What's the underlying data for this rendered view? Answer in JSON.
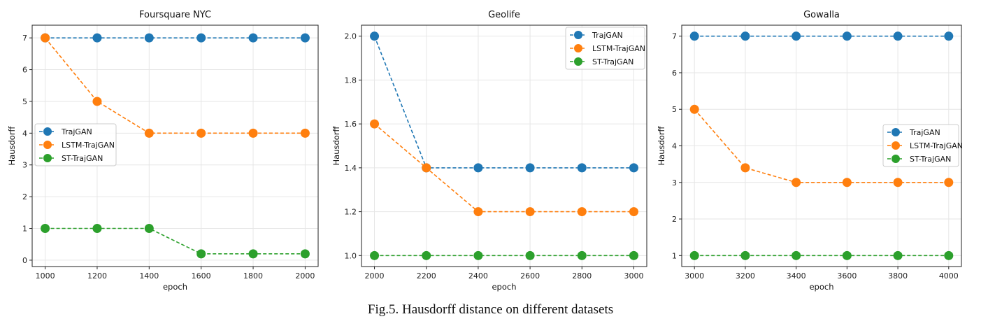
{
  "caption": "Fig.5. Hausdorff distance on different datasets",
  "colors": {
    "TrajGAN": "#1f77b4",
    "LSTM-TrajGAN": "#ff7f0e",
    "ST-TrajGAN": "#2ca02c"
  },
  "chart_data": [
    {
      "type": "line",
      "title": "Foursquare NYC",
      "xlabel": "epoch",
      "ylabel": "Hausdorff",
      "x": [
        1000,
        1200,
        1400,
        1600,
        1800,
        2000
      ],
      "xticks": [
        1000,
        1200,
        1400,
        1600,
        1800,
        2000
      ],
      "yticks": [
        0,
        1,
        2,
        3,
        4,
        5,
        6,
        7
      ],
      "xlim": [
        950,
        2050
      ],
      "ylim": [
        -0.2,
        7.4
      ],
      "grid": true,
      "legend_position": "center-left",
      "series": [
        {
          "name": "TrajGAN",
          "values": [
            7,
            7,
            7,
            7,
            7,
            7
          ]
        },
        {
          "name": "LSTM-TrajGAN",
          "values": [
            7,
            5,
            4,
            4,
            4,
            4
          ]
        },
        {
          "name": "ST-TrajGAN",
          "values": [
            1,
            1,
            1,
            0.2,
            0.2,
            0.2
          ]
        }
      ]
    },
    {
      "type": "line",
      "title": "Geolife",
      "xlabel": "epoch",
      "ylabel": "Hausdorff",
      "x": [
        2000,
        2200,
        2400,
        2600,
        2800,
        3000
      ],
      "xticks": [
        2000,
        2200,
        2400,
        2600,
        2800,
        3000
      ],
      "yticks": [
        1.0,
        1.2,
        1.4,
        1.6,
        1.8,
        2.0
      ],
      "xlim": [
        1950,
        3050
      ],
      "ylim": [
        0.95,
        2.05
      ],
      "grid": true,
      "legend_position": "top-right",
      "series": [
        {
          "name": "TrajGAN",
          "values": [
            2.0,
            1.4,
            1.4,
            1.4,
            1.4,
            1.4
          ]
        },
        {
          "name": "LSTM-TrajGAN",
          "values": [
            1.6,
            1.4,
            1.2,
            1.2,
            1.2,
            1.2
          ]
        },
        {
          "name": "ST-TrajGAN",
          "values": [
            1.0,
            1.0,
            1.0,
            1.0,
            1.0,
            1.0
          ]
        }
      ]
    },
    {
      "type": "line",
      "title": "Gowalla",
      "xlabel": "epoch",
      "ylabel": "Hausdorff",
      "x": [
        3000,
        3200,
        3400,
        3600,
        3800,
        4000
      ],
      "xticks": [
        3000,
        3200,
        3400,
        3600,
        3800,
        4000
      ],
      "yticks": [
        1,
        2,
        3,
        4,
        5,
        6,
        7
      ],
      "xlim": [
        2950,
        4050
      ],
      "ylim": [
        0.7,
        7.3
      ],
      "grid": true,
      "legend_position": "center-right",
      "series": [
        {
          "name": "TrajGAN",
          "values": [
            7,
            7,
            7,
            7,
            7,
            7
          ]
        },
        {
          "name": "LSTM-TrajGAN",
          "values": [
            5,
            3.4,
            3,
            3,
            3,
            3
          ]
        },
        {
          "name": "ST-TrajGAN",
          "values": [
            1,
            1,
            1,
            1,
            1,
            1
          ]
        }
      ]
    }
  ]
}
